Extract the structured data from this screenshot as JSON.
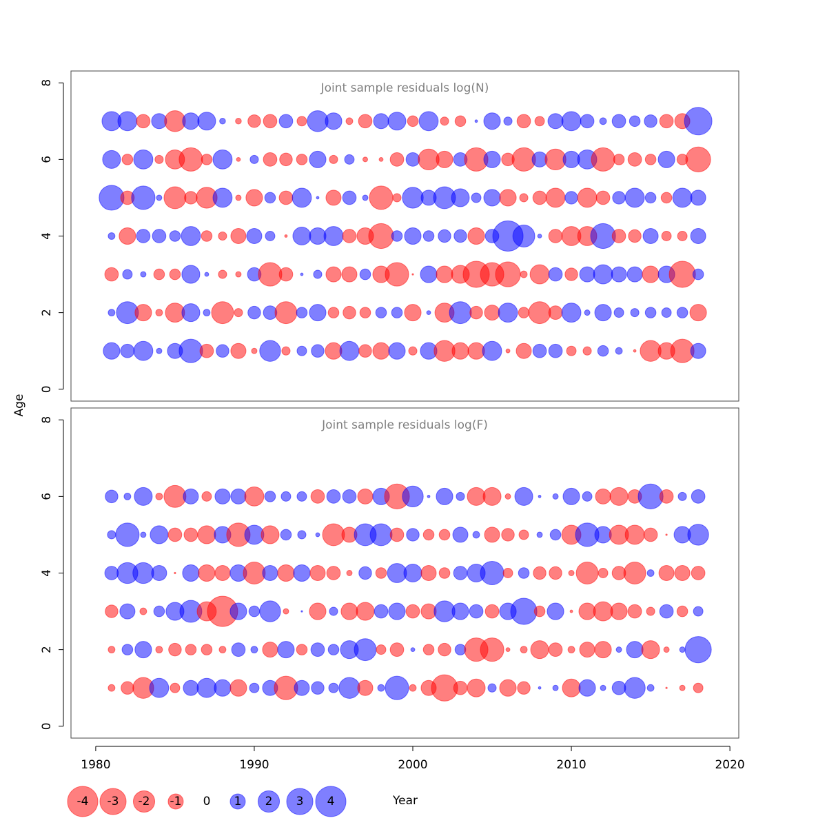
{
  "chart_data": [
    {
      "type": "bubble",
      "title": "Joint sample residuals log(N)",
      "x": [
        1981,
        1982,
        1983,
        1984,
        1985,
        1986,
        1987,
        1988,
        1989,
        1990,
        1991,
        1992,
        1993,
        1994,
        1995,
        1996,
        1997,
        1998,
        1999,
        2000,
        2001,
        2002,
        2003,
        2004,
        2005,
        2006,
        2007,
        2008,
        2009,
        2010,
        2011,
        2012,
        2013,
        2014,
        2015,
        2016,
        2017,
        2018
      ],
      "y": [
        1,
        2,
        3,
        4,
        5,
        6,
        7
      ],
      "values": [
        [
          1.2,
          0.8,
          1.6,
          0.13,
          1,
          2.4,
          -0.8,
          0.7,
          -1,
          -0.13,
          1.9,
          -0.3,
          0.4,
          0.7,
          -1.2,
          1.6,
          -0.7,
          -1.2,
          1.2,
          -0.3,
          1.2,
          -1.9,
          -1.2,
          -1.2,
          1.6,
          -0.07,
          -1,
          0.8,
          0.8,
          -0.4,
          -0.3,
          0.5,
          0.2,
          -0.03,
          -1.9,
          -1.2,
          -2.4,
          1
        ],
        [
          0.2,
          2.1,
          -1.2,
          -0.2,
          -1.6,
          1.4,
          0.2,
          -2.1,
          -0.3,
          0.7,
          0.8,
          -2.1,
          0.5,
          1.2,
          -0.5,
          -0.7,
          -0.5,
          0.5,
          0.5,
          -1.2,
          0.07,
          -1.6,
          2.1,
          -0.7,
          -1,
          1.6,
          -0.5,
          -2.1,
          -0.8,
          1.6,
          0.13,
          1.2,
          0.4,
          0.3,
          0.5,
          0.4,
          0.5,
          -1.2
        ],
        [
          -0.8,
          0.4,
          0.13,
          -0.5,
          -0.5,
          1.4,
          0.07,
          -0.3,
          -0.13,
          0.8,
          -2.4,
          -0.8,
          0.03,
          0.3,
          -1,
          -1,
          0.5,
          -1.2,
          -2.4,
          -0.01,
          1.2,
          -1.2,
          -1.4,
          -3,
          -2.4,
          -2.7,
          -0.2,
          -1.6,
          0.8,
          -0.7,
          1,
          1.6,
          1,
          1,
          -1.2,
          1.2,
          -3,
          0.5
        ],
        [
          0.2,
          -1.2,
          0.8,
          0.8,
          0.5,
          1.6,
          -0.5,
          -0.3,
          -1,
          1,
          0.4,
          -0.03,
          1.4,
          1.2,
          1.6,
          -0.8,
          -1.2,
          -2.7,
          0.5,
          1.2,
          0.5,
          0.7,
          0.7,
          -1.2,
          0.8,
          4,
          2.1,
          0.07,
          -0.8,
          -1.6,
          -1.6,
          2.7,
          -0.8,
          -0.7,
          1,
          -0.4,
          -0.4,
          1
        ],
        [
          2.7,
          -0.8,
          2.4,
          0.13,
          -2.1,
          -0.7,
          -1.9,
          1.6,
          -0.13,
          -1.2,
          0.5,
          -0.8,
          1.6,
          0.03,
          -1,
          0.8,
          0.13,
          -2.4,
          -0.3,
          1.9,
          1,
          2.1,
          1.4,
          0.4,
          1.2,
          -1.2,
          -0.3,
          -0.8,
          -1.6,
          0.7,
          -1.6,
          -0.8,
          0.7,
          1.6,
          0.5,
          -0.5,
          1.6,
          1
        ],
        [
          1.4,
          -0.5,
          1.6,
          -0.3,
          -1.6,
          -2.4,
          -0.5,
          1.6,
          -0.07,
          0.3,
          -0.8,
          -0.7,
          -0.5,
          1.2,
          -0.3,
          0.4,
          -0.1,
          -0.07,
          -0.8,
          0.8,
          -1.9,
          -1.2,
          0.8,
          -2.4,
          1.2,
          -0.7,
          -2.4,
          1,
          -1.9,
          1.2,
          1.6,
          -2.4,
          -0.5,
          -0.8,
          -0.5,
          1.2,
          -0.5,
          -2.7
        ],
        [
          1.6,
          1.6,
          -0.8,
          1,
          -1.9,
          1.2,
          1.4,
          0.15,
          -0.15,
          -0.7,
          -0.8,
          0.8,
          -0.4,
          1.9,
          1.2,
          -0.2,
          -0.8,
          1,
          1.4,
          -0.5,
          1.6,
          -0.3,
          -0.5,
          0.03,
          1.2,
          0.3,
          -0.8,
          -0.4,
          1,
          1.6,
          0.8,
          0.2,
          0.8,
          0.5,
          0.7,
          -0.8,
          -1,
          3.3
        ]
      ],
      "xlim": [
        1978.44,
        2020.56
      ],
      "ylim": [
        -0.31,
        8.31
      ],
      "yticks": [
        0,
        2,
        4,
        6,
        8
      ]
    },
    {
      "type": "bubble",
      "title": "Joint sample residuals log(F)",
      "x": [
        1981,
        1982,
        1983,
        1984,
        1985,
        1986,
        1987,
        1988,
        1989,
        1990,
        1991,
        1992,
        1993,
        1994,
        1995,
        1996,
        1997,
        1998,
        1999,
        2000,
        2001,
        2002,
        2003,
        2004,
        2005,
        2006,
        2007,
        2008,
        2009,
        2010,
        2011,
        2012,
        2013,
        2014,
        2015,
        2016,
        2017,
        2018
      ],
      "y": [
        1,
        2,
        3,
        4,
        5,
        6
      ],
      "values": [
        [
          -0.2,
          -0.7,
          -1.9,
          1.6,
          -0.4,
          1,
          1.6,
          1.2,
          -1.2,
          0.4,
          1,
          -2.4,
          1,
          0.7,
          0.4,
          1.9,
          -1,
          0.2,
          2.4,
          -0.2,
          -1,
          -3,
          -0.8,
          -1.4,
          0.3,
          -1.2,
          -0.7,
          0.03,
          0.13,
          -1.4,
          1.2,
          0.13,
          0.8,
          1.9,
          0.2,
          -0.01,
          -0.13,
          -0.4
        ],
        [
          -0.2,
          0.5,
          1.2,
          -0.2,
          -0.7,
          -0.5,
          -0.5,
          -0.2,
          0.8,
          0.2,
          -1,
          1.2,
          -0.5,
          0.8,
          0.5,
          1.4,
          2.1,
          -0.4,
          -0.8,
          0.07,
          -0.5,
          -0.7,
          0.5,
          -2.4,
          -2.4,
          -0.07,
          -0.2,
          -1.4,
          -0.8,
          -0.2,
          -1,
          -1.2,
          0.13,
          1.2,
          -1.4,
          -0.13,
          0.13,
          3
        ],
        [
          -0.7,
          1,
          -0.2,
          0.5,
          1.4,
          2.1,
          -1.6,
          -4,
          1.2,
          0.5,
          1.9,
          -0.13,
          0.01,
          -1.2,
          0.3,
          -1.2,
          -1.4,
          0.8,
          1.2,
          -0.8,
          -1,
          1.9,
          1.2,
          0.8,
          -0.8,
          1.2,
          3,
          -0.5,
          1.2,
          -0.03,
          -1.2,
          -1.6,
          -1.2,
          -0.8,
          -0.3,
          0.8,
          -0.5,
          0.4
        ],
        [
          0.8,
          1.9,
          1.9,
          1,
          -0.01,
          1.2,
          -1.2,
          -1,
          1.2,
          -2.1,
          1,
          -1.2,
          1.2,
          -1,
          -0.8,
          -0.13,
          0.7,
          -0.5,
          1.6,
          1.4,
          -1,
          -0.5,
          0.8,
          1.4,
          2.4,
          -0.4,
          0.5,
          -0.7,
          -0.7,
          -0.13,
          -2.1,
          -0.4,
          -0.8,
          -2.1,
          0.2,
          -1,
          -1,
          -0.8
        ],
        [
          0.3,
          2.4,
          0.13,
          1.4,
          -0.8,
          -0.8,
          -1.4,
          1.2,
          -2.4,
          1.6,
          -1.4,
          0.5,
          0.3,
          0.07,
          -2.1,
          -1,
          2.1,
          2.1,
          -0.8,
          0.7,
          -0.5,
          -0.5,
          1,
          0.2,
          -1,
          -0.7,
          -0.4,
          0.13,
          0.5,
          -1.6,
          2.4,
          1.2,
          -1.6,
          -1.6,
          -0.8,
          -0.01,
          1.2,
          1.9
        ],
        [
          0.7,
          0.2,
          1.4,
          -0.2,
          -2.1,
          1,
          -0.4,
          1,
          1,
          -1.6,
          0.5,
          0.4,
          0.4,
          -0.8,
          0.8,
          0.8,
          -1,
          1.2,
          -2.7,
          1.9,
          0.03,
          1.2,
          0.3,
          -1.4,
          -1.4,
          -0.13,
          1.4,
          0.03,
          0.13,
          1.2,
          0.4,
          -1,
          -1.4,
          -0.8,
          2.7,
          -0.8,
          0.3,
          0.8
        ]
      ],
      "xlim": [
        1978.44,
        2020.56
      ],
      "ylim": [
        -0.31,
        8.31
      ],
      "yticks": [
        0,
        2,
        4,
        6,
        8
      ],
      "xticks": [
        1980,
        1990,
        2000,
        2010,
        2020
      ]
    }
  ],
  "xlabel": "Year",
  "ylabel": "Age",
  "legend": {
    "values": [
      -4,
      -3,
      -2,
      -1,
      0,
      1,
      2,
      3,
      4
    ]
  },
  "colors": {
    "negative": "#ff0000",
    "positive": "#0000ff"
  },
  "opacity": 0.5
}
